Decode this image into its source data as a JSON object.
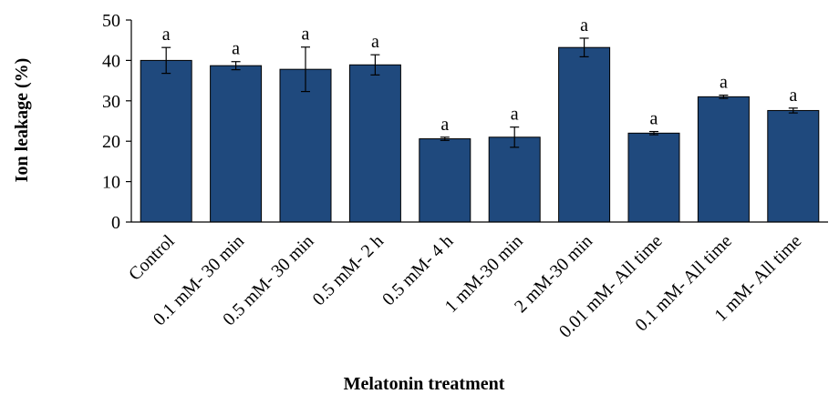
{
  "chart_data": {
    "type": "bar",
    "title": "",
    "xlabel": "Melatonin treatment",
    "ylabel": "Ion leakage (%)",
    "ylim": [
      0,
      50
    ],
    "yticks": [
      0,
      10,
      20,
      30,
      40,
      50
    ],
    "grid": false,
    "categories": [
      "Control",
      "0.1 mM- 30 min",
      "0.5 mM- 30 min",
      "0.5 mM- 2 h",
      "0.5 mM- 4 h",
      "1 mM-30 min",
      "2 mM-30 min",
      "0.01 mM- All time",
      "0.1 mM- All time",
      "1 mM- All time"
    ],
    "series": [
      {
        "values": [
          40.0,
          38.7,
          37.8,
          38.9,
          20.6,
          21.0,
          43.2,
          22.0,
          31.0,
          27.6
        ],
        "errors": [
          3.2,
          1.0,
          5.5,
          2.5,
          0.4,
          2.5,
          2.3,
          0.4,
          0.4,
          0.6
        ],
        "labels": [
          "a",
          "a",
          "a",
          "a",
          "a",
          "a",
          "a",
          "a",
          "a",
          "a"
        ]
      }
    ],
    "colors": {
      "bar": "#1f497d",
      "bar_edge": "#000000"
    }
  }
}
